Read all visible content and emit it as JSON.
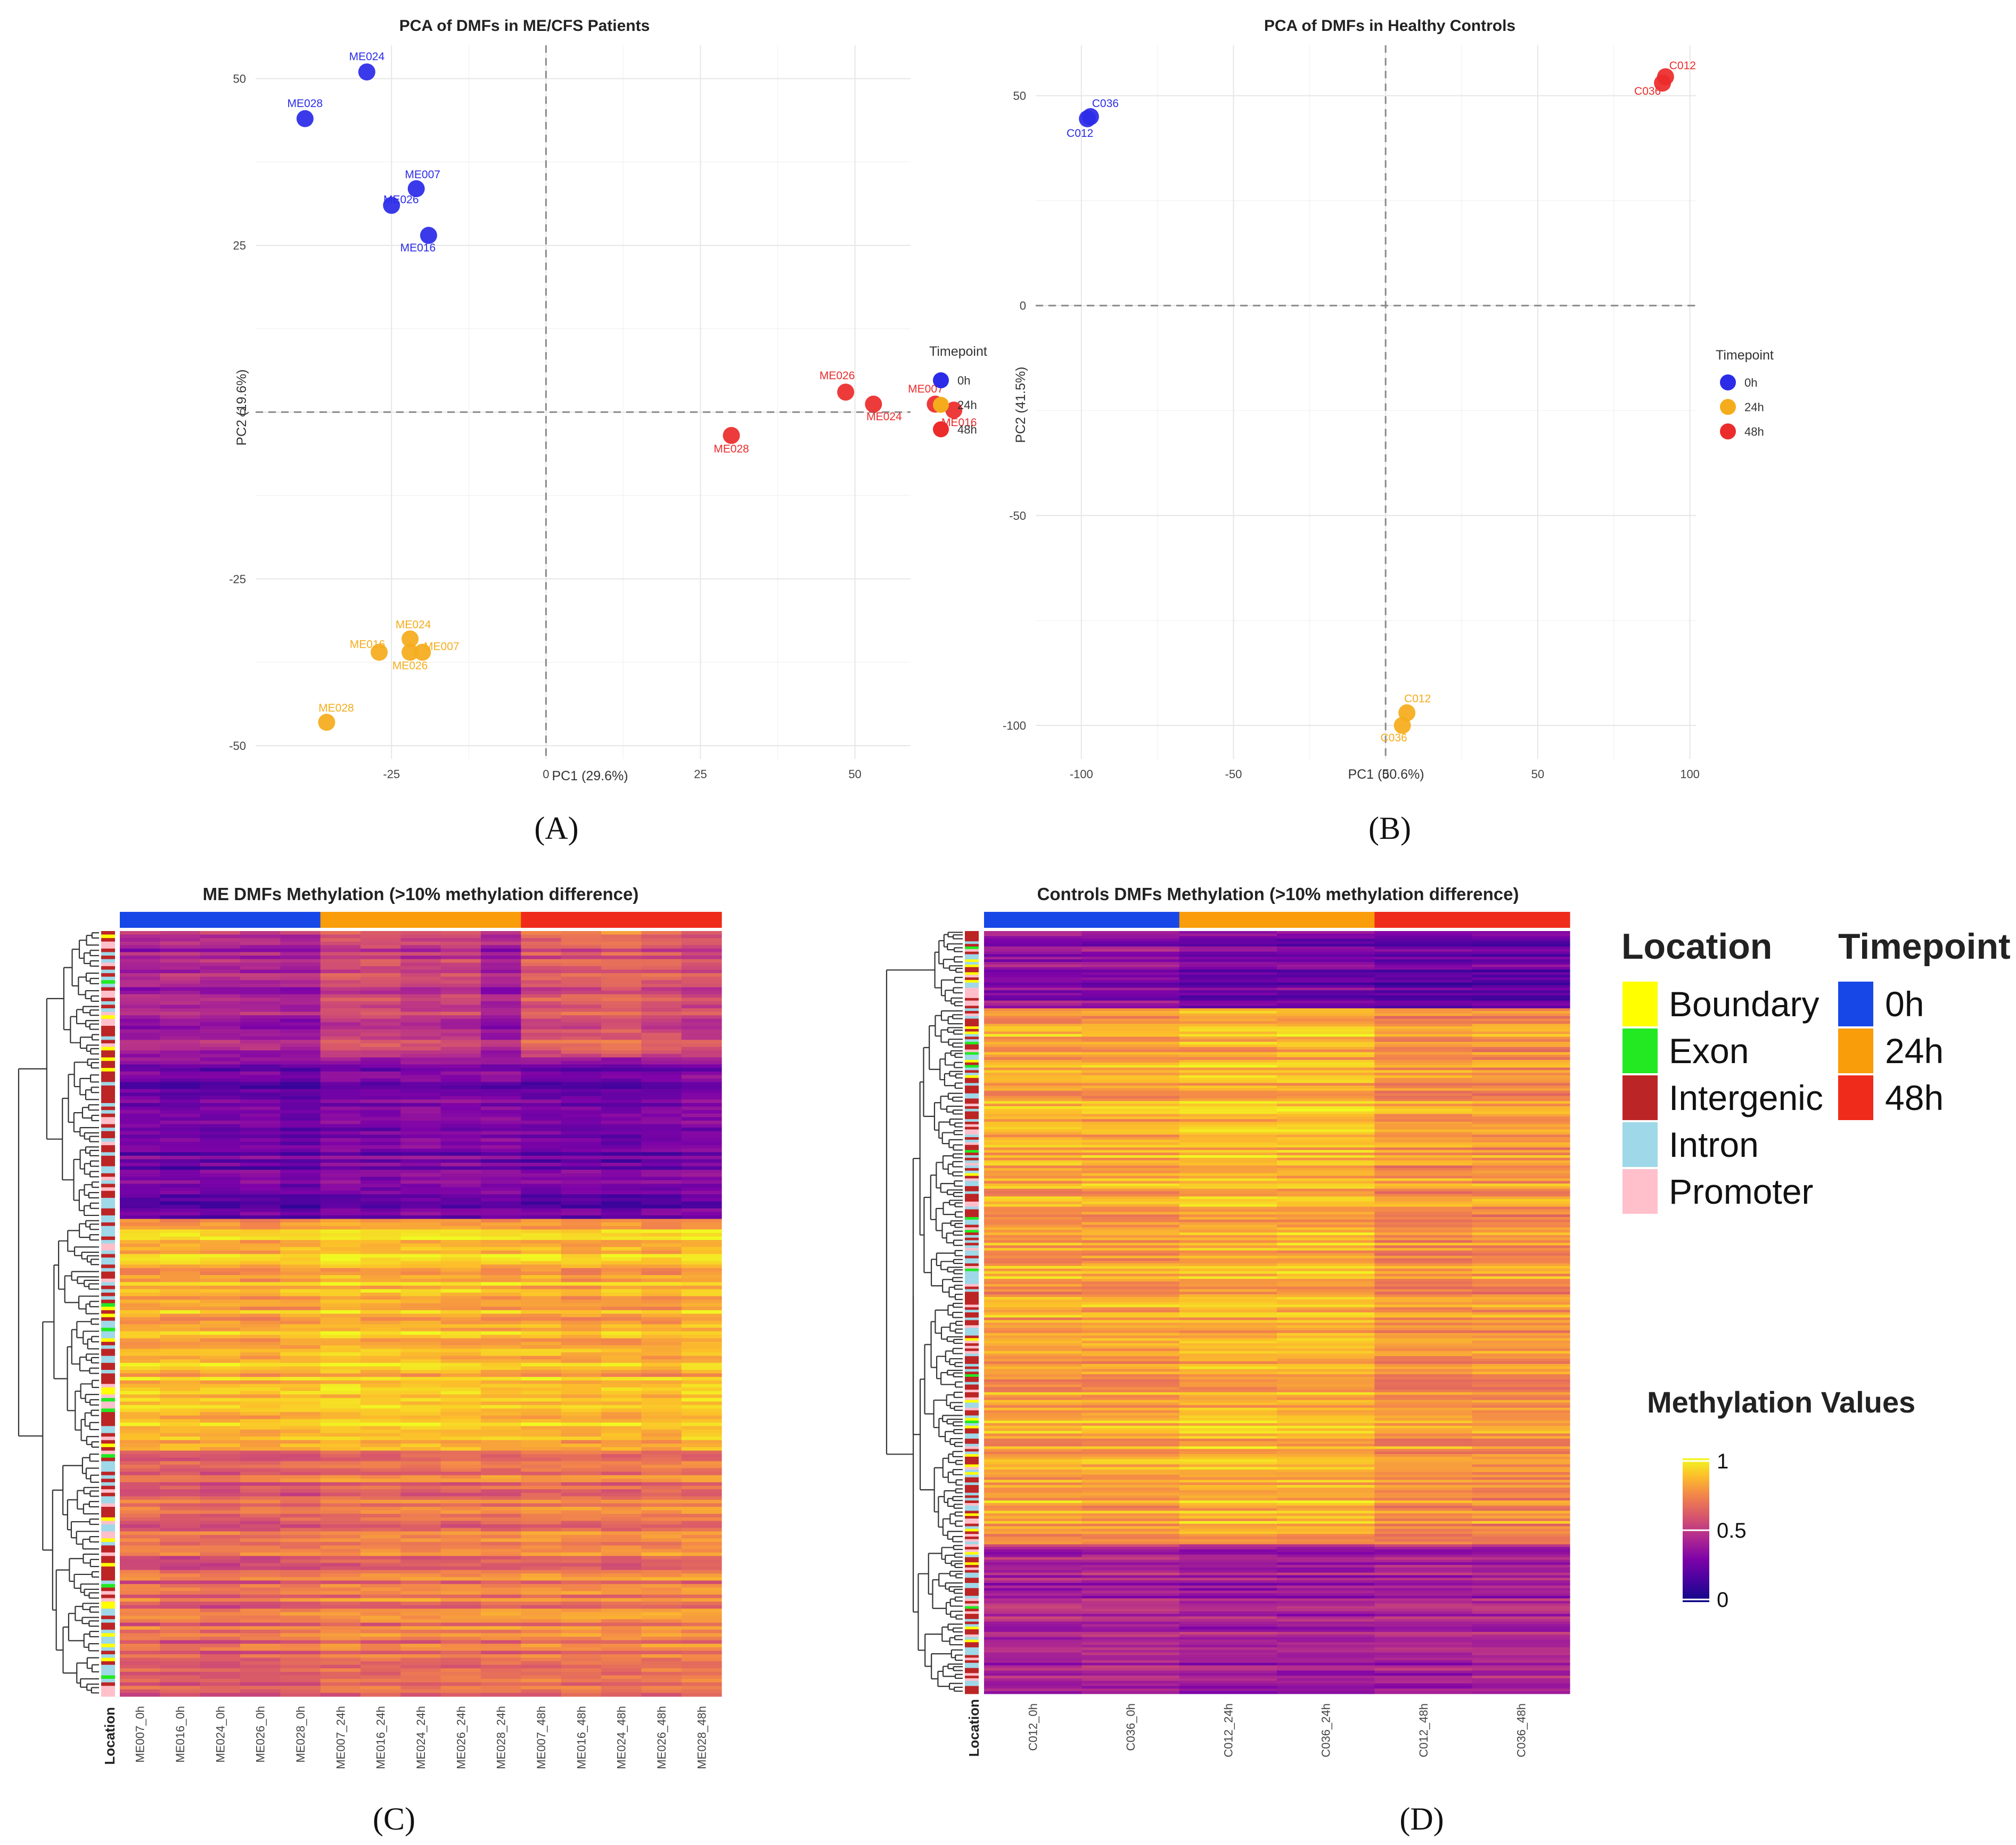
{
  "colors": {
    "t0h": "#2b2be8",
    "t24h": "#f5ac1c",
    "t48h": "#ec2b2b",
    "bar0h": "#1747e6",
    "bar24h": "#f99d0a",
    "bar48h": "#ef2b1b",
    "boundary": "#ffff00",
    "exon": "#22e922",
    "intergenic": "#bc2525",
    "intron": "#9fd8e8",
    "promoter": "#ffc0cb"
  },
  "panels": {
    "A": "(A)",
    "B": "(B)",
    "C": "(C)",
    "D": "(D)"
  },
  "chart_data": [
    {
      "id": "A",
      "type": "scatter",
      "title": "PCA of DMFs in ME/CFS Patients",
      "xlabel": "PC1 (29.6%)",
      "ylabel": "PC2 (19.6%)",
      "xlim": [
        -47,
        59
      ],
      "ylim": [
        -52,
        55
      ],
      "xticks": [
        -25,
        0,
        25,
        50
      ],
      "yticks": [
        -50,
        -25,
        0,
        25,
        50
      ],
      "legend_title": "Timepoint",
      "legend": [
        "0h",
        "24h",
        "48h"
      ],
      "legend_position": "right",
      "points": [
        {
          "x": -29,
          "y": 51,
          "t": "0h",
          "label": "ME024"
        },
        {
          "x": -39,
          "y": 44,
          "t": "0h",
          "label": "ME028"
        },
        {
          "x": -21,
          "y": 33.5,
          "t": "0h",
          "label": "ME007"
        },
        {
          "x": -25,
          "y": 31,
          "t": "0h",
          "label": "ME026"
        },
        {
          "x": -19,
          "y": 26.5,
          "t": "0h",
          "label": "ME016"
        },
        {
          "x": 48.5,
          "y": 3,
          "t": "48h",
          "label": "ME026"
        },
        {
          "x": 53,
          "y": 1.2,
          "t": "48h",
          "label": "ME024"
        },
        {
          "x": 63,
          "y": 1.2,
          "t": "48h",
          "label": "ME007"
        },
        {
          "x": 66,
          "y": 0.3,
          "t": "48h",
          "label": "ME016"
        },
        {
          "x": 30,
          "y": -3.5,
          "t": "48h",
          "label": "ME028"
        },
        {
          "x": -22,
          "y": -34,
          "t": "24h",
          "label": "ME024"
        },
        {
          "x": -27,
          "y": -36,
          "t": "24h",
          "label": "ME016"
        },
        {
          "x": -22,
          "y": -36,
          "t": "24h",
          "label": "ME026"
        },
        {
          "x": -20,
          "y": -36,
          "t": "24h",
          "label": "ME007"
        },
        {
          "x": -35.5,
          "y": -46.5,
          "t": "24h",
          "label": "ME028"
        }
      ]
    },
    {
      "id": "B",
      "type": "scatter",
      "title": "PCA of DMFs in Healthy Controls",
      "xlabel": "PC1 (50.6%)",
      "ylabel": "PC2 (41.5%)",
      "xlim": [
        -115,
        102
      ],
      "ylim": [
        -108,
        62
      ],
      "xticks": [
        -100,
        -50,
        0,
        50,
        100
      ],
      "yticks": [
        -100,
        -50,
        0,
        50
      ],
      "legend_title": "Timepoint",
      "legend": [
        "0h",
        "24h",
        "48h"
      ],
      "legend_position": "right",
      "points": [
        {
          "x": -97,
          "y": 45,
          "t": "0h",
          "label": "C036"
        },
        {
          "x": -98,
          "y": 44.5,
          "t": "0h",
          "label": "C012"
        },
        {
          "x": 92,
          "y": 54.5,
          "t": "48h",
          "label": "C012"
        },
        {
          "x": 91,
          "y": 53,
          "t": "48h",
          "label": "C036"
        },
        {
          "x": 7,
          "y": -97,
          "t": "24h",
          "label": "C012"
        },
        {
          "x": 5.5,
          "y": -100,
          "t": "24h",
          "label": "C036"
        }
      ]
    },
    {
      "id": "C",
      "type": "heatmap",
      "title": "ME DMFs Methylation (>10% methylation difference)",
      "columns": [
        "ME007_0h",
        "ME016_0h",
        "ME024_0h",
        "ME026_0h",
        "ME028_0h",
        "ME007_24h",
        "ME016_24h",
        "ME024_24h",
        "ME026_24h",
        "ME028_24h",
        "ME007_48h",
        "ME016_48h",
        "ME024_48h",
        "ME026_48h",
        "ME028_48h"
      ],
      "column_timepoints": [
        "0h",
        "0h",
        "0h",
        "0h",
        "0h",
        "24h",
        "24h",
        "24h",
        "24h",
        "24h",
        "48h",
        "48h",
        "48h",
        "48h",
        "48h"
      ],
      "row_label": "Location",
      "row_clusters": [
        {
          "rows": 36,
          "base": [
            0.42,
            0.44,
            0.42,
            0.43,
            0.4,
            0.55,
            0.55,
            0.52,
            0.52,
            0.4,
            0.6,
            0.62,
            0.65,
            0.6,
            0.55
          ]
        },
        {
          "rows": 46,
          "base": [
            0.28,
            0.26,
            0.26,
            0.27,
            0.23,
            0.3,
            0.28,
            0.3,
            0.3,
            0.3,
            0.27,
            0.27,
            0.25,
            0.27,
            0.3
          ]
        },
        {
          "rows": 66,
          "base": [
            0.86,
            0.86,
            0.86,
            0.84,
            0.86,
            0.9,
            0.88,
            0.88,
            0.88,
            0.86,
            0.86,
            0.84,
            0.86,
            0.84,
            0.88
          ]
        },
        {
          "rows": 70,
          "base": [
            0.66,
            0.64,
            0.63,
            0.65,
            0.66,
            0.7,
            0.7,
            0.7,
            0.7,
            0.7,
            0.72,
            0.72,
            0.7,
            0.72,
            0.72
          ]
        }
      ]
    },
    {
      "id": "D",
      "type": "heatmap",
      "title": "Controls DMFs Methylation (>10% methylation difference)",
      "columns": [
        "C012_0h",
        "C036_0h",
        "C012_24h",
        "C036_24h",
        "C012_48h",
        "C036_48h"
      ],
      "column_timepoints": [
        "0h",
        "0h",
        "24h",
        "24h",
        "48h",
        "48h"
      ],
      "row_label": "Location",
      "row_clusters": [
        {
          "rows": 30,
          "base": [
            0.35,
            0.35,
            0.28,
            0.28,
            0.25,
            0.25
          ]
        },
        {
          "rows": 208,
          "base": [
            0.82,
            0.82,
            0.86,
            0.86,
            0.78,
            0.78
          ]
        },
        {
          "rows": 58,
          "base": [
            0.42,
            0.44,
            0.4,
            0.4,
            0.42,
            0.42
          ]
        }
      ]
    }
  ],
  "legends": {
    "location": {
      "title": "Location",
      "items": [
        "Boundary",
        "Exon",
        "Intergenic",
        "Intron",
        "Promoter"
      ]
    },
    "timepoint": {
      "title": "Timepoint",
      "items": [
        "0h",
        "24h",
        "48h"
      ]
    },
    "methylation": {
      "title": "Methylation Values",
      "ticks": [
        "1",
        "0.5",
        "0"
      ],
      "range": [
        0,
        1
      ]
    }
  }
}
